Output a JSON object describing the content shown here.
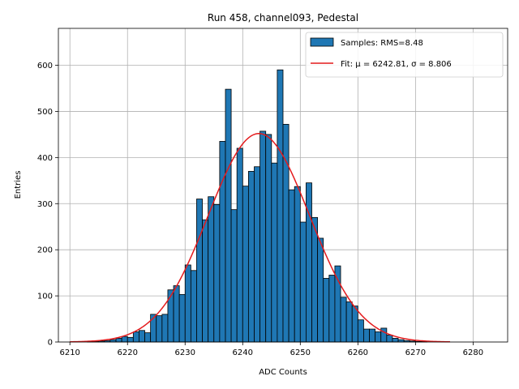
{
  "chart_data": {
    "type": "bar",
    "title": "Run 458, channel093, Pedestal",
    "xlabel": "ADC Counts",
    "ylabel": "Entries",
    "xlim": [
      6208,
      6286
    ],
    "ylim": [
      0,
      680
    ],
    "xticks": [
      6210,
      6220,
      6230,
      6240,
      6250,
      6260,
      6270,
      6280
    ],
    "yticks": [
      0,
      100,
      200,
      300,
      400,
      500,
      600
    ],
    "grid": true,
    "legend_position": "top-right",
    "colors": {
      "bar_fill": "#1f77b4",
      "bar_edge": "#000000",
      "fit_line": "#e41a1c",
      "grid": "#b0b0b0"
    },
    "series": [
      {
        "name": "Samples: RMS=8.48",
        "type": "histogram",
        "bin_width": 1,
        "bin_starts": [
          6213,
          6214,
          6215,
          6216,
          6217,
          6218,
          6219,
          6220,
          6221,
          6222,
          6223,
          6224,
          6225,
          6226,
          6227,
          6228,
          6229,
          6230,
          6231,
          6232,
          6233,
          6234,
          6235,
          6236,
          6237,
          6238,
          6239,
          6240,
          6241,
          6242,
          6243,
          6244,
          6245,
          6246,
          6247,
          6248,
          6249,
          6250,
          6251,
          6252,
          6253,
          6254,
          6255,
          6256,
          6257,
          6258,
          6259,
          6260,
          6261,
          6262,
          6263,
          6264,
          6265,
          6266,
          6267,
          6268,
          6269,
          6270,
          6271
        ],
        "values": [
          1,
          1,
          2,
          3,
          5,
          8,
          12,
          10,
          22,
          25,
          20,
          60,
          57,
          60,
          113,
          122,
          103,
          167,
          155,
          310,
          265,
          315,
          298,
          435,
          548,
          287,
          420,
          338,
          370,
          380,
          457,
          450,
          388,
          590,
          472,
          330,
          337,
          260,
          345,
          270,
          225,
          138,
          145,
          165,
          97,
          87,
          78,
          48,
          28,
          28,
          22,
          30,
          15,
          8,
          5,
          3,
          2,
          1,
          1
        ]
      },
      {
        "name": "Fit: μ = 6242.81, σ = 8.806",
        "type": "gaussian",
        "mu": 6242.81,
        "sigma": 8.806,
        "amplitude": 452,
        "x_range": [
          6210,
          6276
        ]
      }
    ]
  }
}
